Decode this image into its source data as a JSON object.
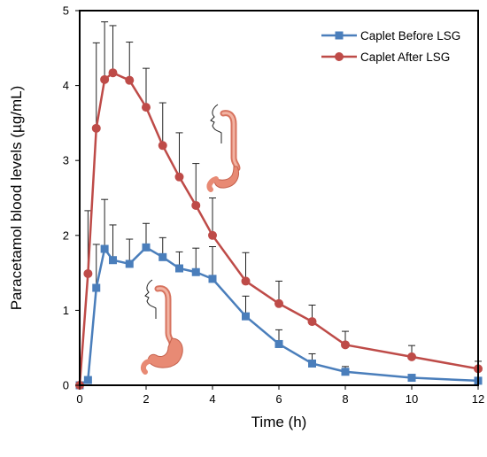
{
  "chart_data": {
    "type": "line",
    "title": "",
    "xlabel": "Time (h)",
    "ylabel": "Paracetamol blood levels (µg/mL)",
    "xlim": [
      0,
      12
    ],
    "ylim": [
      0,
      5
    ],
    "xticks": [
      0,
      2,
      4,
      6,
      8,
      10,
      12
    ],
    "yticks": [
      0,
      1,
      2,
      3,
      4,
      5
    ],
    "grid": false,
    "legend_position": "top-right",
    "series": [
      {
        "name": "Caplet Before LSG",
        "color": "#4a7ebb",
        "marker": "square",
        "x": [
          0,
          0.25,
          0.5,
          0.75,
          1,
          1.5,
          2,
          2.5,
          3,
          3.5,
          4,
          5,
          6,
          7,
          8,
          10,
          12
        ],
        "y": [
          0,
          0.07,
          1.3,
          1.82,
          1.67,
          1.62,
          1.84,
          1.71,
          1.56,
          1.51,
          1.42,
          0.92,
          0.55,
          0.29,
          0.18,
          0.1,
          0.06
        ],
        "error": [
          0,
          0,
          0.58,
          0.66,
          0.47,
          0.33,
          0.32,
          0.26,
          0.22,
          0.32,
          0.43,
          0.27,
          0.19,
          0.13,
          0.07,
          0.03,
          0.02
        ]
      },
      {
        "name": "Caplet After LSG",
        "color": "#be4b48",
        "marker": "circle",
        "x": [
          0,
          0.25,
          0.5,
          0.75,
          1,
          1.5,
          2,
          2.5,
          3,
          3.5,
          4,
          5,
          6,
          7,
          8,
          10,
          12
        ],
        "y": [
          0,
          1.49,
          3.43,
          4.08,
          4.17,
          4.07,
          3.71,
          3.2,
          2.78,
          2.4,
          2.0,
          1.39,
          1.09,
          0.85,
          0.54,
          0.38,
          0.22
        ],
        "error": [
          0,
          0.84,
          1.14,
          0.77,
          0.63,
          0.51,
          0.52,
          0.57,
          0.59,
          0.56,
          0.5,
          0.38,
          0.3,
          0.22,
          0.18,
          0.15,
          0.1
        ]
      }
    ]
  }
}
